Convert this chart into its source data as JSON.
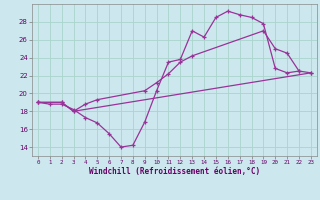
{
  "xlabel": "Windchill (Refroidissement éolien,°C)",
  "bg_color": "#cce8ee",
  "grid_color": "#aad4cc",
  "line_color": "#993399",
  "xlim": [
    -0.5,
    23.5
  ],
  "ylim": [
    13.0,
    30.0
  ],
  "yticks": [
    14,
    16,
    18,
    20,
    22,
    24,
    26,
    28
  ],
  "xticks": [
    0,
    1,
    2,
    3,
    4,
    5,
    6,
    7,
    8,
    9,
    10,
    11,
    12,
    13,
    14,
    15,
    16,
    17,
    18,
    19,
    20,
    21,
    22,
    23
  ],
  "line1_x": [
    0,
    1,
    2,
    3,
    4,
    5,
    6,
    7,
    8,
    9,
    10,
    11,
    12,
    13,
    14,
    15,
    16,
    17,
    18,
    19,
    20,
    21,
    22
  ],
  "line1_y": [
    19.0,
    18.8,
    18.8,
    18.2,
    17.3,
    16.7,
    15.5,
    14.0,
    14.2,
    16.8,
    20.3,
    23.5,
    23.8,
    27.0,
    26.3,
    28.5,
    29.2,
    28.8,
    28.5,
    27.8,
    22.8,
    22.3,
    22.5
  ],
  "line2_x": [
    0,
    2,
    3,
    4,
    5,
    9,
    10,
    11,
    12,
    13,
    19,
    20,
    21,
    22,
    23
  ],
  "line2_y": [
    19.0,
    19.0,
    18.0,
    18.8,
    19.3,
    20.3,
    21.2,
    22.2,
    23.5,
    24.2,
    27.0,
    25.0,
    24.5,
    22.5,
    22.3
  ],
  "line3_x": [
    0,
    2,
    3,
    23
  ],
  "line3_y": [
    19.0,
    19.0,
    18.0,
    22.3
  ]
}
